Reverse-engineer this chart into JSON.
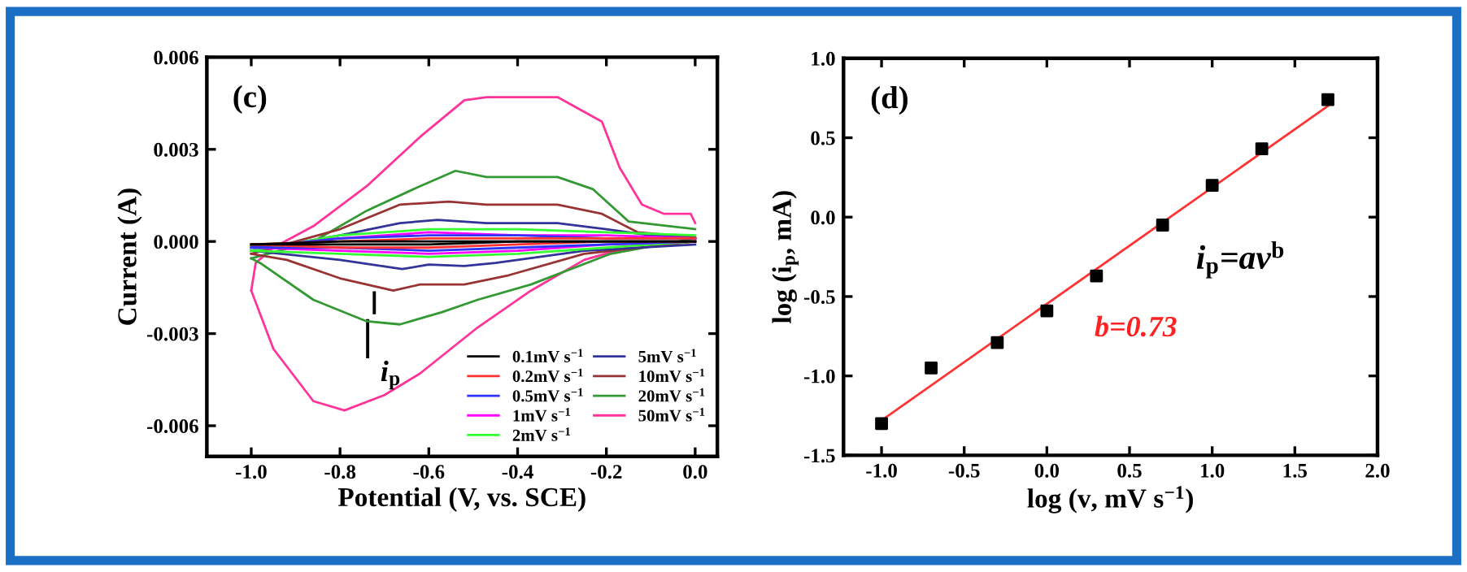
{
  "chart_data": [
    {
      "type": "line",
      "title": "(c)",
      "xlabel": "Potential (V, vs. SCE)",
      "ylabel": "Current (A)",
      "xlim": [
        -1.1,
        0.05
      ],
      "ylim": [
        -0.007,
        0.006
      ],
      "xticks": [
        {
          "value": -1.0,
          "label": "-1.0"
        },
        -0.8,
        -0.6,
        -0.4,
        -0.2,
        {
          "value": 0.0,
          "label": "0.0"
        }
      ],
      "yticks": [
        {
          "value": -0.006,
          "label": "-0.006"
        },
        {
          "value": -0.003,
          "label": "-0.003"
        },
        {
          "value": 0,
          "label": "0.000"
        },
        {
          "value": 0.003,
          "label": "0.003"
        },
        {
          "value": 0.006,
          "label": "0.006"
        }
      ],
      "grid": false,
      "legend": "bottom right",
      "marker": "none",
      "line_style": "solid",
      "annotations": [
        "i$_{p}$"
      ],
      "series": [
        {
          "name": "0.1mV s$^{−1}$",
          "color": "#000000",
          "x": [
            -1.0,
            -0.8,
            -0.6,
            -0.4,
            -0.2,
            0.0
          ],
          "values": [
            -0.0001,
            0.0,
            0.0,
            0.0,
            0.0,
            0.0
          ]
        },
        {
          "color": "#000000",
          "x": [
            -1.0,
            -0.8,
            -0.6,
            -0.4,
            -0.2,
            0.0
          ],
          "values": [
            -0.0001,
            -0.0001,
            -0.0001,
            0.0,
            0.0,
            0.0
          ]
        },
        {
          "name": "0.2mV s$^{−1}$",
          "color": "#ff3333",
          "x": [
            -1.0,
            -0.8,
            -0.6,
            -0.4,
            -0.2,
            0.0
          ],
          "values": [
            -0.0001,
            0.0,
            0.0001,
            0.0001,
            0.0001,
            0.0001
          ]
        },
        {
          "color": "#ff3333",
          "x": [
            -1.0,
            -0.8,
            -0.6,
            -0.4,
            -0.2,
            0.0
          ],
          "values": [
            -0.0001,
            -0.0002,
            -0.0002,
            -0.0001,
            0.0,
            0.0
          ]
        },
        {
          "name": "0.5mV s$^{−1}$",
          "color": "#3333ff",
          "x": [
            -1.0,
            -0.8,
            -0.6,
            -0.4,
            -0.2,
            0.0
          ],
          "values": [
            -0.0002,
            0.0001,
            0.0002,
            0.0002,
            0.0001,
            0.0001
          ]
        },
        {
          "color": "#3333ff",
          "x": [
            -1.0,
            -0.8,
            -0.6,
            -0.4,
            -0.2,
            0.0
          ],
          "values": [
            -0.0002,
            -0.0002,
            -0.0003,
            -0.0002,
            -0.0001,
            0.0
          ]
        },
        {
          "name": "1mV s$^{−1}$",
          "color": "#ff00ff",
          "x": [
            -1.0,
            -0.8,
            -0.6,
            -0.4,
            -0.2,
            0.0
          ],
          "values": [
            -0.0002,
            0.0001,
            0.0003,
            0.0002,
            0.0002,
            0.0001
          ]
        },
        {
          "color": "#ff00ff",
          "x": [
            -1.0,
            -0.8,
            -0.6,
            -0.4,
            -0.2,
            0.0
          ],
          "values": [
            -0.0002,
            -0.0003,
            -0.0004,
            -0.0003,
            -0.0001,
            0.0
          ]
        },
        {
          "name": "2mV s$^{−1}$",
          "color": "#33ff33",
          "x": [
            -1.0,
            -0.8,
            -0.6,
            -0.4,
            -0.2,
            0.0
          ],
          "values": [
            -0.0003,
            0.0002,
            0.0004,
            0.0004,
            0.0003,
            0.0002
          ]
        },
        {
          "color": "#33ff33",
          "x": [
            -1.0,
            -0.8,
            -0.6,
            -0.4,
            -0.2,
            0.0
          ],
          "values": [
            -0.0003,
            -0.0004,
            -0.0005,
            -0.0004,
            -0.0002,
            0.0
          ]
        },
        {
          "name": "5mV s$^{−1}$",
          "color": "#333399",
          "x": [
            -1.0,
            -0.8,
            -0.665,
            -0.58,
            -0.47,
            -0.31,
            -0.2,
            -0.1,
            0.0
          ],
          "values": [
            -0.0003,
            0.0002,
            0.0006,
            0.0007,
            0.0006,
            0.0006,
            0.0004,
            0.0002,
            0.0001
          ]
        },
        {
          "color": "#333399",
          "x": [
            -1.0,
            -0.8,
            -0.66,
            -0.6,
            -0.52,
            -0.45,
            -0.25,
            0.0
          ],
          "values": [
            -0.0003,
            -0.0006,
            -0.0009,
            -0.00075,
            -0.0008,
            -0.0007,
            -0.0003,
            -0.0001
          ]
        },
        {
          "name": "10mV s$^{−1}$",
          "color": "#993333",
          "x": [
            -1.0,
            -0.8,
            -0.665,
            -0.555,
            -0.47,
            -0.31,
            -0.21,
            -0.13,
            0.0
          ],
          "values": [
            -0.0004,
            0.0004,
            0.0012,
            0.0013,
            0.0012,
            0.0012,
            0.0009,
            0.0003,
            0.00014
          ]
        },
        {
          "color": "#993333",
          "x": [
            -1.0,
            -0.92,
            -0.8,
            -0.68,
            -0.62,
            -0.52,
            -0.42,
            -0.25,
            0.0
          ],
          "values": [
            -0.0004,
            -0.0006,
            -0.0012,
            -0.0016,
            -0.0014,
            -0.0014,
            -0.0011,
            -0.0004,
            0.0
          ]
        },
        {
          "name": "20mV s$^{−1}$",
          "color": "#339933",
          "x": [
            -1.0,
            -0.86,
            -0.74,
            -0.62,
            -0.54,
            -0.47,
            -0.31,
            -0.23,
            -0.15,
            0.0
          ],
          "values": [
            -0.00055,
            0.0,
            0.001,
            0.0018,
            0.0023,
            0.0021,
            0.0021,
            0.0017,
            0.00065,
            0.0004
          ]
        },
        {
          "color": "#339933",
          "x": [
            -1.0,
            -0.98,
            -0.86,
            -0.74,
            -0.665,
            -0.57,
            -0.49,
            -0.37,
            -0.19,
            0.0
          ],
          "values": [
            -0.00055,
            -0.0007,
            -0.0019,
            -0.0026,
            -0.0027,
            -0.0023,
            -0.0019,
            -0.0014,
            -0.0004,
            0.0001
          ]
        },
        {
          "name": "50mV s$^{−1}$",
          "color": "#ff3399",
          "x": [
            -1.0,
            -0.99,
            -0.95,
            -0.86,
            -0.74,
            -0.62,
            -0.52,
            -0.47,
            -0.31,
            -0.21,
            -0.17,
            -0.12,
            -0.07,
            -0.01,
            0.0
          ],
          "values": [
            -0.0016,
            -0.0007,
            -0.0002,
            0.0005,
            0.0018,
            0.0034,
            0.0046,
            0.0047,
            0.0047,
            0.0039,
            0.0024,
            0.0012,
            0.0009,
            0.0009,
            0.0006
          ]
        },
        {
          "color": "#ff3399",
          "x": [
            -1.0,
            -0.95,
            -0.86,
            -0.79,
            -0.7,
            -0.62,
            -0.49,
            -0.37,
            -0.25,
            -0.13,
            0.0
          ],
          "values": [
            -0.0016,
            -0.0035,
            -0.0052,
            -0.0055,
            -0.005,
            -0.0043,
            -0.0028,
            -0.0016,
            -0.0006,
            -0.0001,
            0.0
          ]
        }
      ]
    },
    {
      "type": "scatter",
      "title": "(d)",
      "xlabel": "log (v, mV s$^{−1}$)",
      "ylabel": "log (i$_{p}$, mA)",
      "xlim": [
        -1.23,
        2.0
      ],
      "ylim": [
        -1.5,
        1.0
      ],
      "xticks": [
        {
          "value": -1.0,
          "label": "-1.0"
        },
        -0.5,
        {
          "value": 0.0,
          "label": "0.0"
        },
        0.5,
        {
          "value": 1.0,
          "label": "1.0"
        },
        1.5,
        {
          "value": 2.0,
          "label": "2.0"
        }
      ],
      "yticks": [
        -1.5,
        {
          "value": -1.0,
          "label": "-1.0"
        },
        -0.5,
        {
          "value": 0.0,
          "label": "0.0"
        },
        0.5,
        {
          "value": 1.0,
          "label": "1.0"
        }
      ],
      "grid": false,
      "legend": false,
      "marker": "square",
      "annotations": [
        "i$_{p}$=av$^{b}$",
        "b=0.73"
      ],
      "series": [
        {
          "color": "#000000",
          "x": [
            -1.0,
            -0.7,
            -0.3,
            0.0,
            0.3,
            0.7,
            1.0,
            1.3,
            1.7
          ],
          "values": [
            -1.3,
            -0.95,
            -0.79,
            -0.59,
            -0.37,
            -0.05,
            0.2,
            0.43,
            0.74
          ]
        },
        {
          "type": "line",
          "marker": "none",
          "color": "#ff3333",
          "x": [
            -1.0,
            1.7
          ],
          "values": [
            -1.28,
            0.7
          ]
        }
      ]
    }
  ]
}
